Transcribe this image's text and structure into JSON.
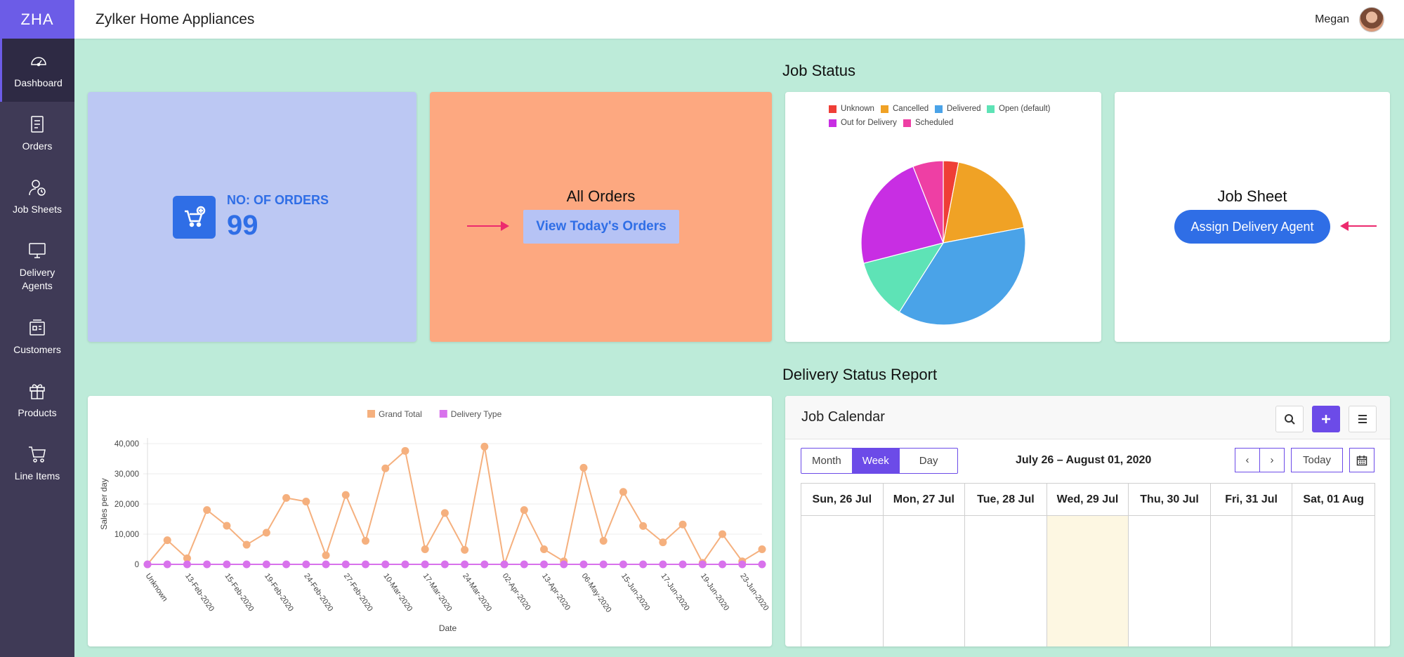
{
  "app": {
    "logo": "ZHA",
    "title": "Zylker Home Appliances",
    "user_name": "Megan"
  },
  "sidebar": {
    "items": [
      {
        "label": "Dashboard",
        "icon": "dashboard-icon"
      },
      {
        "label": "Orders",
        "icon": "orders-icon"
      },
      {
        "label": "Job Sheets",
        "icon": "job-sheets-icon"
      },
      {
        "label": "Delivery Agents",
        "icon": "delivery-agents-icon"
      },
      {
        "label": "Customers",
        "icon": "customers-icon"
      },
      {
        "label": "Products",
        "icon": "products-icon"
      },
      {
        "label": "Line Items",
        "icon": "cart-icon"
      }
    ]
  },
  "sections": {
    "job_status": "Job Status",
    "delivery_report": "Delivery Status Report"
  },
  "orders_count": {
    "label": "NO: OF ORDERS",
    "value": "99"
  },
  "all_orders": {
    "title": "All Orders",
    "button": "View Today's Orders"
  },
  "job_sheet": {
    "title": "Job Sheet",
    "button": "Assign Delivery Agent"
  },
  "colors": {
    "accent": "#6c5ce7",
    "primary_blue": "#2f6ee6",
    "arrow": "#ec2a6e",
    "background": "#bdebd9"
  },
  "chart_data": [
    {
      "type": "pie",
      "legend_position": "top",
      "legend": [
        "Unknown",
        "Cancelled",
        "Delivered",
        "Open (default)",
        "Out for Delivery",
        "Scheduled"
      ],
      "slices": [
        {
          "label": "Unknown",
          "value": 3,
          "color": "#ef3e36"
        },
        {
          "label": "Cancelled",
          "value": 19,
          "color": "#f0a225"
        },
        {
          "label": "Delivered",
          "value": 37,
          "color": "#4aa3e8"
        },
        {
          "label": "Open (default)",
          "value": 12,
          "color": "#5ee3b6"
        },
        {
          "label": "Out for Delivery",
          "value": 23,
          "color": "#c82ee3"
        },
        {
          "label": "Scheduled",
          "value": 6,
          "color": "#ee3fa4"
        }
      ]
    },
    {
      "type": "line",
      "legend_position": "top",
      "xlabel": "Date",
      "ylabel": "Sales per day",
      "ylim": [
        0,
        40000
      ],
      "yticks": [
        "0",
        "10,000",
        "20,000",
        "30,000",
        "40,000"
      ],
      "x_tick_labels": [
        "Unknown",
        "13-Feb-2020",
        "15-Feb-2020",
        "19-Feb-2020",
        "24-Feb-2020",
        "27-Feb-2020",
        "10-Mar-2020",
        "17-Mar-2020",
        "24-Mar-2020",
        "02-Apr-2020",
        "13-Apr-2020",
        "06-May-2020",
        "15-Jun-2020",
        "17-Jun-2020",
        "19-Jun-2020",
        "23-Jun-2020"
      ],
      "series": [
        {
          "name": "Grand Total",
          "color": "#f5b07e",
          "values": [
            0,
            8000,
            2000,
            18000,
            12800,
            6500,
            10500,
            22000,
            20800,
            3000,
            23000,
            7800,
            31800,
            37600,
            5000,
            17000,
            4800,
            39000,
            0,
            18000,
            5000,
            1000,
            32000,
            7800,
            24000,
            12700,
            7300,
            13200,
            500,
            10000,
            1000,
            5000
          ]
        },
        {
          "name": "Delivery Type",
          "color": "#d872ec",
          "values": [
            0,
            0,
            0,
            0,
            0,
            0,
            0,
            0,
            0,
            0,
            0,
            0,
            0,
            0,
            0,
            0,
            0,
            0,
            0,
            0,
            0,
            0,
            0,
            0,
            0,
            0,
            0,
            0,
            0,
            0,
            0,
            0
          ]
        }
      ]
    }
  ],
  "calendar": {
    "title": "Job Calendar",
    "views": [
      "Month",
      "Week",
      "Day"
    ],
    "active_view": "Week",
    "range": "July 26 – August 01, 2020",
    "prev": "‹",
    "next": "›",
    "today": "Today",
    "days": [
      "Sun, 26 Jul",
      "Mon, 27 Jul",
      "Tue, 28 Jul",
      "Wed, 29 Jul",
      "Thu, 30 Jul",
      "Fri, 31 Jul",
      "Sat, 01 Aug"
    ],
    "today_index": 3
  }
}
